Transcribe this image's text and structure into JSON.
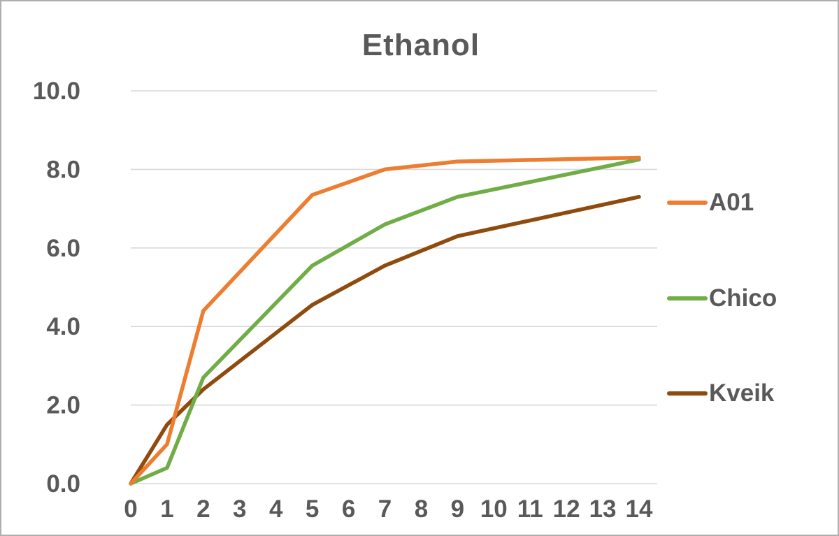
{
  "chart_data": {
    "type": "line",
    "title": "Ethanol",
    "xlabel": "",
    "ylabel": "",
    "xlim": [
      0,
      14
    ],
    "ylim": [
      0,
      10
    ],
    "grid": true,
    "legend_position": "right",
    "x_ticks": [
      "0",
      "1",
      "2",
      "3",
      "4",
      "5",
      "6",
      "7",
      "8",
      "9",
      "10",
      "11",
      "12",
      "13",
      "14"
    ],
    "y_ticks": [
      "0.0",
      "2.0",
      "4.0",
      "6.0",
      "8.0",
      "10.0"
    ],
    "x": [
      0,
      1,
      2,
      5,
      7,
      9,
      14
    ],
    "series": [
      {
        "name": "A01",
        "color": "#ED7D31",
        "values": [
          0.0,
          1.0,
          4.4,
          7.35,
          8.0,
          8.2,
          8.3
        ]
      },
      {
        "name": "Chico",
        "color": "#70AD47",
        "values": [
          0.0,
          0.4,
          2.7,
          5.55,
          6.6,
          7.3,
          8.25
        ]
      },
      {
        "name": "Kveik",
        "color": "#8F4B0E",
        "values": [
          0.0,
          1.5,
          2.4,
          4.55,
          5.55,
          6.3,
          7.3
        ]
      }
    ],
    "colors": {
      "grid": "#d9d9d9",
      "text": "#595959",
      "border": "#aeaeae",
      "background": "#ffffff"
    }
  }
}
